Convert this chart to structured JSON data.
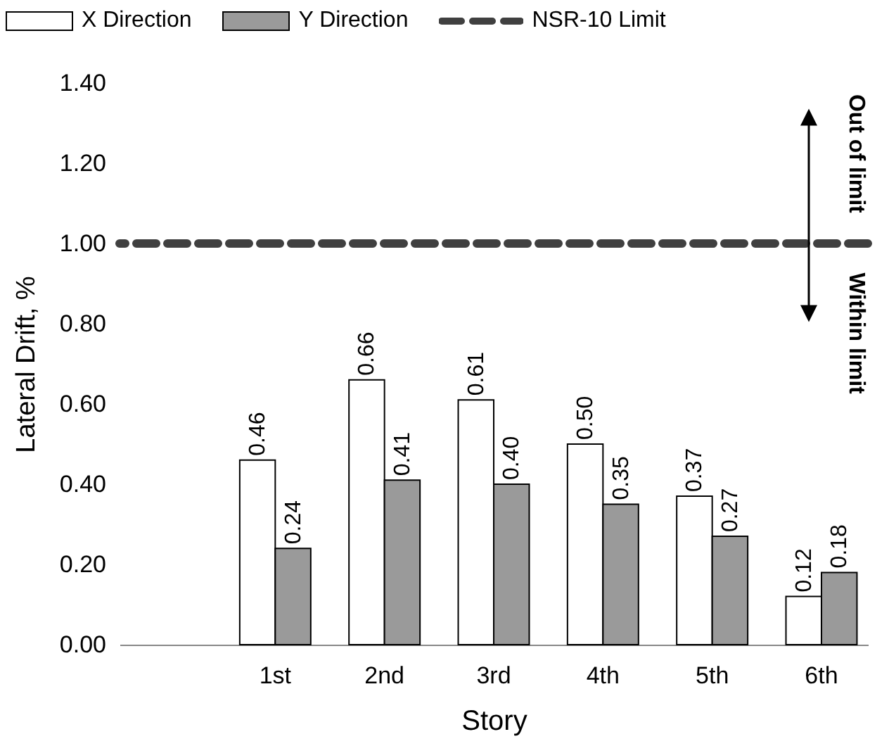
{
  "chart_data": {
    "type": "bar",
    "xlabel": "Story",
    "ylabel": "Lateral Drift, %",
    "categories": [
      null,
      "1st",
      "2nd",
      "3rd",
      "4th",
      "5th",
      "6th"
    ],
    "series": [
      {
        "name": "X Direction",
        "color": "#ffffff",
        "values": [
          null,
          0.46,
          0.66,
          0.61,
          0.5,
          0.37,
          0.12
        ],
        "value_labels": [
          null,
          "0.46",
          "0.66",
          "0.61",
          "0.50",
          "0.37",
          "0.12"
        ]
      },
      {
        "name": "Y Direction",
        "color": "#9a9a9a",
        "values": [
          null,
          0.24,
          0.41,
          0.4,
          0.35,
          0.27,
          0.18
        ],
        "value_labels": [
          null,
          "0.24",
          "0.41",
          "0.40",
          "0.35",
          "0.27",
          "0.18"
        ]
      }
    ],
    "ylim": [
      0,
      1.4
    ],
    "yticks": [
      {
        "value": 0,
        "label": "0.00"
      },
      {
        "value": 0.2,
        "label": "0.20"
      },
      {
        "value": 0.4,
        "label": "0.40"
      },
      {
        "value": 0.6,
        "label": "0.60"
      },
      {
        "value": 0.8,
        "label": "0.80"
      },
      {
        "value": 1.0,
        "label": "1.00"
      },
      {
        "value": 1.2,
        "label": "1.20"
      },
      {
        "value": 1.4,
        "label": "1.40"
      }
    ],
    "ref_lines": [
      {
        "axis": "y",
        "value": 1.0,
        "label": "NSR-10 Limit",
        "color": "#404040",
        "line_style": "dashed"
      }
    ],
    "annotations": [
      "Out of limit",
      "Within limit"
    ],
    "grid": false,
    "legend": "top"
  }
}
